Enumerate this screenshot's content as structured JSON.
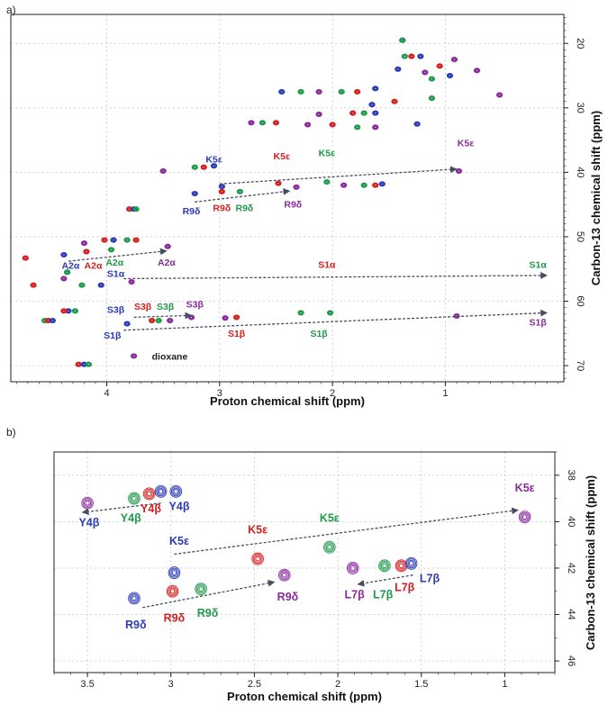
{
  "colors": {
    "blue": "#2b3bb5",
    "red": "#d42020",
    "green": "#1f9a4a",
    "purple": "#8a2a9e",
    "grid": "#c8c8c8",
    "arrow": "#444e64"
  },
  "chart_data": [
    {
      "panel": "a)",
      "type": "scatter",
      "title": "",
      "xlabel": "Proton chemical shift (ppm)",
      "ylabel": "Carbon-13 chemical shift (ppm)",
      "xlim": [
        4.85,
        -0.05
      ],
      "ylim": [
        15.5,
        72.5
      ],
      "xticks": [
        4,
        3,
        2,
        1
      ],
      "yticks": [
        20,
        30,
        40,
        50,
        60,
        70
      ],
      "grid": true,
      "peaks": [
        {
          "x": 1.38,
          "y": 19.5,
          "c": "blue"
        },
        {
          "x": 1.38,
          "y": 19.5,
          "c": "green"
        },
        {
          "x": 1.36,
          "y": 22.0,
          "c": "green"
        },
        {
          "x": 1.3,
          "y": 22.0,
          "c": "red"
        },
        {
          "x": 1.22,
          "y": 22.0,
          "c": "blue"
        },
        {
          "x": 1.42,
          "y": 24.0,
          "c": "blue"
        },
        {
          "x": 1.18,
          "y": 24.5,
          "c": "purple"
        },
        {
          "x": 1.12,
          "y": 25.5,
          "c": "green"
        },
        {
          "x": 0.96,
          "y": 25.0,
          "c": "blue"
        },
        {
          "x": 0.92,
          "y": 22.5,
          "c": "purple"
        },
        {
          "x": 0.72,
          "y": 24.2,
          "c": "purple"
        },
        {
          "x": 0.52,
          "y": 28.0,
          "c": "purple"
        },
        {
          "x": 1.05,
          "y": 23.5,
          "c": "red"
        },
        {
          "x": 1.92,
          "y": 27.5,
          "c": "green"
        },
        {
          "x": 1.78,
          "y": 27.5,
          "c": "red"
        },
        {
          "x": 1.62,
          "y": 27.0,
          "c": "blue"
        },
        {
          "x": 2.12,
          "y": 27.5,
          "c": "purple"
        },
        {
          "x": 2.28,
          "y": 27.5,
          "c": "green"
        },
        {
          "x": 2.45,
          "y": 27.5,
          "c": "blue"
        },
        {
          "x": 1.65,
          "y": 29.5,
          "c": "blue"
        },
        {
          "x": 1.45,
          "y": 29.0,
          "c": "red"
        },
        {
          "x": 1.12,
          "y": 28.5,
          "c": "green"
        },
        {
          "x": 1.82,
          "y": 30.8,
          "c": "red"
        },
        {
          "x": 1.72,
          "y": 30.8,
          "c": "green"
        },
        {
          "x": 1.62,
          "y": 30.8,
          "c": "blue"
        },
        {
          "x": 2.12,
          "y": 31.0,
          "c": "purple"
        },
        {
          "x": 2.62,
          "y": 32.3,
          "c": "green"
        },
        {
          "x": 2.5,
          "y": 32.3,
          "c": "red"
        },
        {
          "x": 2.22,
          "y": 32.6,
          "c": "purple"
        },
        {
          "x": 2.0,
          "y": 32.6,
          "c": "red"
        },
        {
          "x": 1.78,
          "y": 33.0,
          "c": "green"
        },
        {
          "x": 1.62,
          "y": 33.0,
          "c": "purple"
        },
        {
          "x": 1.25,
          "y": 32.5,
          "c": "blue"
        },
        {
          "x": 2.72,
          "y": 32.3,
          "c": "purple"
        },
        {
          "x": 3.22,
          "y": 39.2,
          "c": "green"
        },
        {
          "x": 3.14,
          "y": 39.2,
          "c": "red"
        },
        {
          "x": 3.05,
          "y": 39.0,
          "c": "blue"
        },
        {
          "x": 3.5,
          "y": 39.8,
          "c": "purple"
        },
        {
          "x": 2.98,
          "y": 42.2,
          "c": "blue"
        },
        {
          "x": 2.48,
          "y": 41.7,
          "c": "red"
        },
        {
          "x": 2.05,
          "y": 41.5,
          "c": "green"
        },
        {
          "x": 1.9,
          "y": 42.0,
          "c": "purple"
        },
        {
          "x": 1.72,
          "y": 42.0,
          "c": "green"
        },
        {
          "x": 1.62,
          "y": 42.0,
          "c": "red"
        },
        {
          "x": 1.56,
          "y": 41.8,
          "c": "blue"
        },
        {
          "x": 0.88,
          "y": 39.8,
          "c": "purple"
        },
        {
          "x": 3.22,
          "y": 43.3,
          "c": "blue"
        },
        {
          "x": 2.98,
          "y": 43.0,
          "c": "red"
        },
        {
          "x": 2.82,
          "y": 43.0,
          "c": "green"
        },
        {
          "x": 2.32,
          "y": 42.3,
          "c": "purple"
        },
        {
          "x": 3.8,
          "y": 45.7,
          "c": "red"
        },
        {
          "x": 3.76,
          "y": 45.7,
          "c": "blue"
        },
        {
          "x": 3.74,
          "y": 45.7,
          "c": "green"
        },
        {
          "x": 4.02,
          "y": 50.5,
          "c": "red"
        },
        {
          "x": 3.94,
          "y": 50.5,
          "c": "blue"
        },
        {
          "x": 3.82,
          "y": 50.5,
          "c": "green"
        },
        {
          "x": 3.74,
          "y": 50.5,
          "c": "red"
        },
        {
          "x": 3.46,
          "y": 51.5,
          "c": "purple"
        },
        {
          "x": 4.2,
          "y": 51.0,
          "c": "purple"
        },
        {
          "x": 3.96,
          "y": 52.0,
          "c": "green"
        },
        {
          "x": 4.18,
          "y": 52.3,
          "c": "red"
        },
        {
          "x": 4.38,
          "y": 52.8,
          "c": "blue"
        },
        {
          "x": 4.72,
          "y": 53.3,
          "c": "red"
        },
        {
          "x": 4.35,
          "y": 55.5,
          "c": "blue"
        },
        {
          "x": 4.35,
          "y": 55.5,
          "c": "green"
        },
        {
          "x": 4.38,
          "y": 56.5,
          "c": "purple"
        },
        {
          "x": 4.22,
          "y": 57.5,
          "c": "green"
        },
        {
          "x": 4.05,
          "y": 57.5,
          "c": "blue"
        },
        {
          "x": 3.78,
          "y": 57.0,
          "c": "purple"
        },
        {
          "x": 4.65,
          "y": 57.5,
          "c": "red"
        },
        {
          "x": 4.34,
          "y": 61.5,
          "c": "blue"
        },
        {
          "x": 4.28,
          "y": 61.5,
          "c": "green"
        },
        {
          "x": 4.38,
          "y": 61.5,
          "c": "red"
        },
        {
          "x": 4.55,
          "y": 63.0,
          "c": "green"
        },
        {
          "x": 4.52,
          "y": 63.0,
          "c": "red"
        },
        {
          "x": 4.48,
          "y": 63.0,
          "c": "blue"
        },
        {
          "x": 3.82,
          "y": 63.5,
          "c": "blue"
        },
        {
          "x": 3.6,
          "y": 63.0,
          "c": "red"
        },
        {
          "x": 3.54,
          "y": 63.0,
          "c": "green"
        },
        {
          "x": 3.44,
          "y": 63.0,
          "c": "purple"
        },
        {
          "x": 3.25,
          "y": 62.5,
          "c": "purple"
        },
        {
          "x": 2.85,
          "y": 62.5,
          "c": "red"
        },
        {
          "x": 2.95,
          "y": 62.6,
          "c": "purple"
        },
        {
          "x": 2.28,
          "y": 61.8,
          "c": "green"
        },
        {
          "x": 2.02,
          "y": 61.8,
          "c": "green"
        },
        {
          "x": 0.9,
          "y": 62.3,
          "c": "purple"
        },
        {
          "x": 4.25,
          "y": 69.8,
          "c": "red"
        },
        {
          "x": 4.2,
          "y": 69.8,
          "c": "blue"
        },
        {
          "x": 4.16,
          "y": 69.8,
          "c": "green"
        },
        {
          "x": 3.76,
          "y": 68.5,
          "c": "purple"
        }
      ],
      "labels": [
        {
          "t": "K5ε",
          "x": 3.05,
          "y": 38.5,
          "c": "blue"
        },
        {
          "t": "K5ε",
          "x": 2.45,
          "y": 38.0,
          "c": "red"
        },
        {
          "t": "K5ε",
          "x": 2.05,
          "y": 37.5,
          "c": "green"
        },
        {
          "t": "K5ε",
          "x": 0.82,
          "y": 36.0,
          "c": "purple"
        },
        {
          "t": "R9δ",
          "x": 3.25,
          "y": 46.5,
          "c": "blue"
        },
        {
          "t": "R9δ",
          "x": 2.98,
          "y": 46.0,
          "c": "red"
        },
        {
          "t": "R9δ",
          "x": 2.78,
          "y": 46.0,
          "c": "green"
        },
        {
          "t": "R9δ",
          "x": 2.35,
          "y": 45.5,
          "c": "purple"
        },
        {
          "t": "A2α",
          "x": 4.32,
          "y": 55.0,
          "c": "blue"
        },
        {
          "t": "A2α",
          "x": 4.12,
          "y": 55.0,
          "c": "red"
        },
        {
          "t": "A2α",
          "x": 3.93,
          "y": 54.5,
          "c": "green"
        },
        {
          "t": "A2α",
          "x": 3.47,
          "y": 54.5,
          "c": "purple"
        },
        {
          "t": "S1α",
          "x": 3.92,
          "y": 56.2,
          "c": "blue"
        },
        {
          "t": "S1α",
          "x": 2.05,
          "y": 54.8,
          "c": "red"
        },
        {
          "t": "S1α",
          "x": 0.18,
          "y": 54.8,
          "c": "green"
        },
        {
          "t": "S3β",
          "x": 3.92,
          "y": 61.8,
          "c": "blue"
        },
        {
          "t": "S3β",
          "x": 3.68,
          "y": 61.3,
          "c": "red"
        },
        {
          "t": "S3β",
          "x": 3.48,
          "y": 61.3,
          "c": "green"
        },
        {
          "t": "S3β",
          "x": 3.22,
          "y": 61.0,
          "c": "purple"
        },
        {
          "t": "S1β",
          "x": 3.95,
          "y": 65.8,
          "c": "blue"
        },
        {
          "t": "S1β",
          "x": 2.85,
          "y": 65.5,
          "c": "red"
        },
        {
          "t": "S1β",
          "x": 2.12,
          "y": 65.5,
          "c": "green"
        },
        {
          "t": "S1β",
          "x": 0.18,
          "y": 63.8,
          "c": "purple"
        }
      ],
      "arrows": [
        {
          "x1": 3.0,
          "y1": 41.8,
          "x2": 0.9,
          "y2": 39.5
        },
        {
          "x1": 3.22,
          "y1": 44.6,
          "x2": 2.38,
          "y2": 42.9
        },
        {
          "x1": 4.34,
          "y1": 53.8,
          "x2": 3.47,
          "y2": 52.2
        },
        {
          "x1": 3.85,
          "y1": 56.5,
          "x2": 0.1,
          "y2": 56.0
        },
        {
          "x1": 3.76,
          "y1": 62.5,
          "x2": 3.25,
          "y2": 62.2
        },
        {
          "x1": 3.85,
          "y1": 64.5,
          "x2": 0.1,
          "y2": 61.8
        }
      ],
      "annotations": [
        {
          "t": "dioxane",
          "x": 3.6,
          "y": 68.5
        }
      ]
    },
    {
      "panel": "b)",
      "type": "scatter",
      "title": "",
      "xlabel": "Proton chemical shift (ppm)",
      "ylabel": "Carbon-13 chemical shift (ppm)",
      "xlim": [
        3.7,
        0.7
      ],
      "ylim": [
        37.0,
        46.5
      ],
      "xticks": [
        3.5,
        3,
        2.5,
        2,
        1.5,
        1
      ],
      "yticks": [
        38,
        40,
        42,
        44,
        46
      ],
      "grid": true,
      "peaks": [
        {
          "x": 3.5,
          "y": 39.2,
          "c": "purple"
        },
        {
          "x": 3.22,
          "y": 39.0,
          "c": "green"
        },
        {
          "x": 3.13,
          "y": 38.8,
          "c": "red"
        },
        {
          "x": 3.06,
          "y": 38.7,
          "c": "blue"
        },
        {
          "x": 2.97,
          "y": 38.7,
          "c": "blue"
        },
        {
          "x": 0.88,
          "y": 39.8,
          "c": "purple"
        },
        {
          "x": 2.05,
          "y": 41.1,
          "c": "green"
        },
        {
          "x": 2.48,
          "y": 41.6,
          "c": "red"
        },
        {
          "x": 2.98,
          "y": 42.2,
          "c": "blue"
        },
        {
          "x": 2.32,
          "y": 42.3,
          "c": "purple"
        },
        {
          "x": 1.91,
          "y": 42.0,
          "c": "purple"
        },
        {
          "x": 1.72,
          "y": 41.9,
          "c": "green"
        },
        {
          "x": 1.62,
          "y": 41.9,
          "c": "red"
        },
        {
          "x": 1.56,
          "y": 41.8,
          "c": "blue"
        },
        {
          "x": 3.22,
          "y": 43.3,
          "c": "blue"
        },
        {
          "x": 2.99,
          "y": 43.0,
          "c": "red"
        },
        {
          "x": 2.82,
          "y": 42.9,
          "c": "green"
        }
      ],
      "labels": [
        {
          "t": "Y4β",
          "x": 3.49,
          "y": 40.2,
          "c": "blue"
        },
        {
          "t": "Y4β",
          "x": 3.24,
          "y": 40.0,
          "c": "green"
        },
        {
          "t": "Y4β",
          "x": 3.12,
          "y": 39.6,
          "c": "red"
        },
        {
          "t": "Y4β",
          "x": 2.95,
          "y": 39.5,
          "c": "blue"
        },
        {
          "t": "K5ε",
          "x": 0.88,
          "y": 38.7,
          "c": "purple"
        },
        {
          "t": "K5ε",
          "x": 2.48,
          "y": 40.5,
          "c": "red"
        },
        {
          "t": "K5ε",
          "x": 2.05,
          "y": 40.0,
          "c": "green"
        },
        {
          "t": "K5ε",
          "x": 2.95,
          "y": 41.0,
          "c": "blue"
        },
        {
          "t": "L7β",
          "x": 1.9,
          "y": 43.3,
          "c": "purple"
        },
        {
          "t": "L7β",
          "x": 1.73,
          "y": 43.3,
          "c": "green"
        },
        {
          "t": "L7β",
          "x": 1.6,
          "y": 43.0,
          "c": "red"
        },
        {
          "t": "L7β",
          "x": 1.45,
          "y": 42.6,
          "c": "blue"
        },
        {
          "t": "R9δ",
          "x": 3.21,
          "y": 44.6,
          "c": "blue"
        },
        {
          "t": "R9δ",
          "x": 2.98,
          "y": 44.3,
          "c": "red"
        },
        {
          "t": "R9δ",
          "x": 2.78,
          "y": 44.1,
          "c": "green"
        },
        {
          "t": "R9δ",
          "x": 2.3,
          "y": 43.4,
          "c": "purple"
        }
      ],
      "arrows": [
        {
          "x1": 3.06,
          "y1": 39.2,
          "x2": 3.53,
          "y2": 39.6
        },
        {
          "x1": 2.98,
          "y1": 41.4,
          "x2": 0.92,
          "y2": 39.5
        },
        {
          "x1": 1.55,
          "y1": 42.3,
          "x2": 1.88,
          "y2": 42.7
        },
        {
          "x1": 3.17,
          "y1": 43.7,
          "x2": 2.38,
          "y2": 42.6
        }
      ],
      "annotations": []
    }
  ]
}
